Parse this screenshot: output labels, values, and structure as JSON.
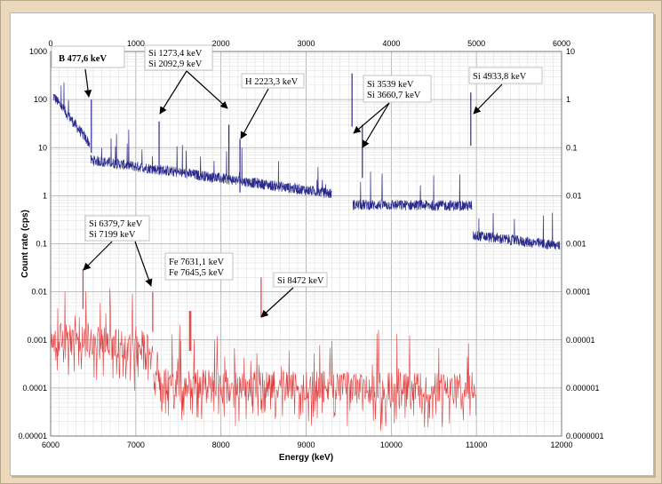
{
  "chart_data": {
    "type": "line",
    "xlabel": "Energy (keV)",
    "ylabel": "Count rate (cps)",
    "grid": true,
    "axes": {
      "bottom": {
        "min": 6000,
        "max": 12000,
        "ticks": [
          "6000",
          "7000",
          "8000",
          "9000",
          "10000",
          "11000",
          "12000"
        ]
      },
      "top": {
        "min": 0,
        "max": 6000,
        "ticks": [
          "0",
          "1000",
          "2000",
          "3000",
          "4000",
          "5000",
          "6000"
        ]
      },
      "left": {
        "scale": "log",
        "min": 1e-05,
        "max": 1000,
        "ticks": [
          "0.00001",
          "0.0001",
          "0.001",
          "0.01",
          "0.1",
          "1",
          "10",
          "100",
          "1000"
        ]
      },
      "right": {
        "scale": "log",
        "min": 1e-07,
        "max": 10,
        "ticks": [
          "0.0000001",
          "0.000001",
          "0.00001",
          "0.0001",
          "0.001",
          "0.01",
          "0.1",
          "1",
          "10"
        ]
      }
    },
    "series": [
      {
        "axis": "top-right",
        "color": "#2a2a8c",
        "segments": [
          {
            "x0": 30,
            "x1": 460,
            "y0": 1.2,
            "y1": 0.12
          },
          {
            "x0": 470,
            "x1": 3300,
            "y0": 0.055,
            "y1": 0.011
          },
          {
            "x0": 3550,
            "x1": 4950,
            "y0": 0.0065,
            "y1": 0.0062
          },
          {
            "x0": 4960,
            "x1": 5980,
            "y0": 0.0015,
            "y1": 0.0009
          }
        ],
        "peaks": [
          {
            "x": 477.6,
            "y": 1.0
          },
          {
            "x": 1273.4,
            "y": 0.35
          },
          {
            "x": 2092.9,
            "y": 0.3
          },
          {
            "x": 2223.3,
            "y": 0.15
          },
          {
            "x": 3539,
            "y": 3.5
          },
          {
            "x": 3660.7,
            "y": 0.3
          },
          {
            "x": 4933.8,
            "y": 1.4
          }
        ]
      },
      {
        "axis": "bottom-left",
        "color": "#e03c3c",
        "segments": [
          {
            "x0": 6000,
            "x1": 7200,
            "y0": 0.0012,
            "y1": 0.0007
          },
          {
            "x0": 7210,
            "x1": 11000,
            "y0": 0.00013,
            "y1": 0.0001
          }
        ],
        "peaks": [
          {
            "x": 6379.7,
            "y": 0.03
          },
          {
            "x": 7199,
            "y": 0.01
          },
          {
            "x": 7631.1,
            "y": 0.004
          },
          {
            "x": 7645.5,
            "y": 0.004
          },
          {
            "x": 8472,
            "y": 0.02
          }
        ]
      }
    ],
    "annotations": [
      {
        "lines": [
          "B 477,6 keV"
        ],
        "highlight": true,
        "color": "#8b1a1a"
      },
      {
        "lines": [
          "Si 1273,4 keV",
          "Si 2092,9 keV"
        ]
      },
      {
        "lines": [
          "H 2223,3 keV"
        ]
      },
      {
        "lines": [
          "Si 3539 keV",
          "Si 3660,7 keV"
        ]
      },
      {
        "lines": [
          "Si 4933,8 keV"
        ]
      },
      {
        "lines": [
          "Si 6379,7 keV",
          "Si 7199 keV"
        ]
      },
      {
        "lines": [
          "Fe 7631,1 keV",
          "Fe 7645,5 keV"
        ]
      },
      {
        "lines": [
          "Si 8472 keV"
        ]
      }
    ]
  }
}
